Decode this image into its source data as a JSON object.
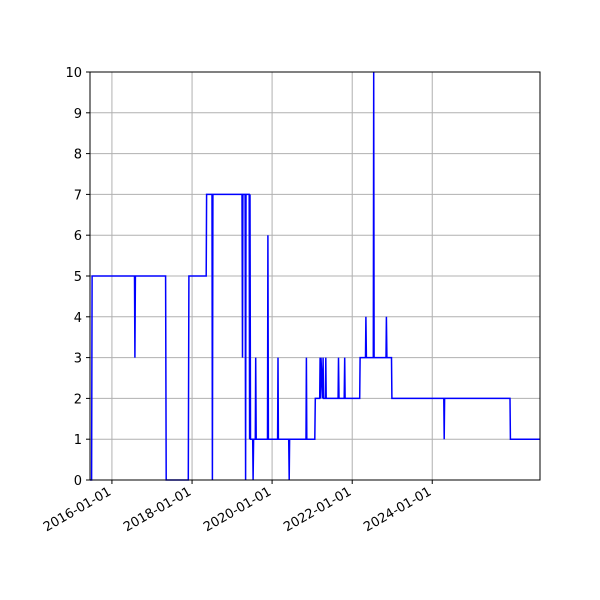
{
  "chart_data": {
    "type": "line",
    "title": "",
    "xlabel": "",
    "ylabel": "",
    "xlim": [
      "2015-06-15",
      "2026-09-10"
    ],
    "ylim": [
      0,
      10
    ],
    "grid": true,
    "line_color": "#0000ff",
    "grid_color": "#b0b0b0",
    "y_ticks": [
      0,
      1,
      2,
      3,
      4,
      5,
      6,
      7,
      8,
      9,
      10
    ],
    "x_ticks": [
      "2016-01-01",
      "2018-01-01",
      "2020-01-01",
      "2022-01-01",
      "2024-01-01"
    ],
    "x_tick_labels": [
      "2016-01-01",
      "2018-01-01",
      "2020-01-01",
      "2022-01-01",
      "2024-01-01"
    ],
    "series": [
      {
        "x": [
          "2015-06-15",
          "2015-06-30",
          "2015-07-04",
          "2015-07-08",
          "2015-07-12",
          "2016-07-25",
          "2016-07-29",
          "2016-08-02",
          "2017-05-05",
          "2017-05-10",
          "2017-05-14",
          "2017-11-28",
          "2017-12-03",
          "2018-05-10",
          "2018-05-14",
          "2018-06-28",
          "2018-07-02",
          "2018-07-06",
          "2018-07-10",
          "2019-04-02",
          "2019-04-06",
          "2019-04-10",
          "2019-04-14",
          "2019-04-30",
          "2019-05-04",
          "2019-05-08",
          "2019-06-06",
          "2019-06-10",
          "2019-06-14",
          "2019-06-18",
          "2019-07-08",
          "2019-07-12",
          "2019-07-16",
          "2019-07-20",
          "2019-08-01",
          "2019-08-05",
          "2019-08-09",
          "2019-11-20",
          "2019-11-24",
          "2019-11-28",
          "2019-12-02",
          "2020-02-20",
          "2020-02-24",
          "2020-02-28",
          "2020-03-03",
          "2020-06-01",
          "2020-06-05",
          "2020-06-09",
          "2020-11-05",
          "2020-11-09",
          "2020-11-13",
          "2021-01-25",
          "2021-01-29",
          "2021-02-02",
          "2021-03-10",
          "2021-03-14",
          "2021-03-18",
          "2021-03-22",
          "2021-04-06",
          "2021-04-10",
          "2021-04-14",
          "2021-04-18",
          "2021-05-01",
          "2021-05-05",
          "2021-05-09",
          "2021-08-25",
          "2021-08-29",
          "2021-09-02",
          "2021-10-20",
          "2021-10-24",
          "2021-10-28",
          "2022-03-10",
          "2022-03-14",
          "2022-03-18",
          "2022-05-02",
          "2022-05-06",
          "2022-05-10",
          "2022-07-12",
          "2022-07-16",
          "2022-07-20",
          "2022-11-05",
          "2022-11-09",
          "2022-11-13",
          "2022-12-25",
          "2022-12-29",
          "2023-01-02",
          "2024-04-15",
          "2024-04-19",
          "2024-04-23",
          "2025-12-10",
          "2025-12-14",
          "2026-09-10"
        ],
        "y": [
          0,
          0,
          5,
          5,
          5,
          5,
          3,
          5,
          5,
          0,
          0,
          0,
          5,
          5,
          7,
          7,
          7,
          0,
          7,
          7,
          3,
          7,
          7,
          7,
          0,
          7,
          7,
          1,
          7,
          1,
          1,
          0,
          1,
          1,
          1,
          3,
          1,
          1,
          6,
          1,
          1,
          1,
          3,
          1,
          1,
          1,
          0,
          1,
          1,
          3,
          1,
          1,
          2,
          2,
          2,
          3,
          2,
          3,
          2,
          3,
          2,
          2,
          2,
          3,
          2,
          2,
          3,
          2,
          2,
          3,
          2,
          2,
          3,
          3,
          3,
          4,
          3,
          3,
          10,
          3,
          3,
          4,
          3,
          3,
          2,
          2,
          2,
          1,
          2,
          2,
          1,
          1
        ]
      }
    ]
  }
}
